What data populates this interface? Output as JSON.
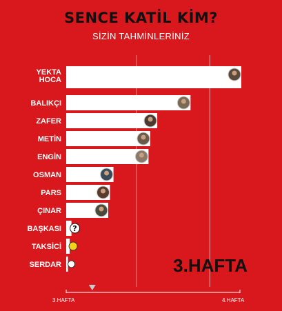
{
  "header": {
    "title": "SENCE KATİL KİM?",
    "subtitle": "SİZİN TAHMİNLERİNİZ"
  },
  "week_label": "3.HAFTA",
  "timeline": {
    "start_label": "3.HAFTA",
    "end_label": "4.HAFTA",
    "progress": 0.15
  },
  "colors": {
    "background": "#d8181c",
    "bar": "#ffffff",
    "gridline": "#f2a0a0"
  },
  "chart_data": {
    "type": "bar",
    "orientation": "horizontal",
    "categories": [
      "YEKTA HOCA",
      "BALIKÇI",
      "ZAFER",
      "METİN",
      "ENGİN",
      "OSMAN",
      "PARS",
      "ÇINAR",
      "BAŞKASI",
      "TAKSİCİ",
      "SERDAR"
    ],
    "values": [
      100,
      71,
      52,
      48,
      47,
      27,
      25,
      24,
      3,
      2,
      1
    ],
    "xlim": [
      0,
      100
    ],
    "gridlines": [
      40,
      82
    ],
    "grid": true,
    "title": "SENCE KATİL KİM?",
    "subtitle": "SİZİN TAHMİNLERİNİZ"
  }
}
